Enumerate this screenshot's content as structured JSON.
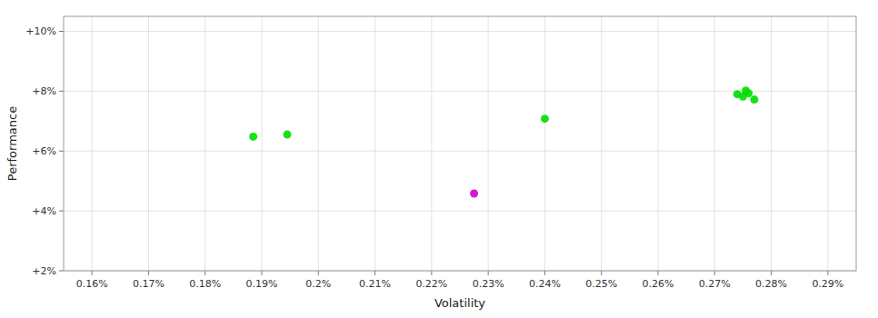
{
  "chart_data": {
    "type": "scatter",
    "xlabel": "Volatility",
    "ylabel": "Performance",
    "xlim": [
      0.00155,
      0.00295
    ],
    "ylim": [
      0.02,
      0.105
    ],
    "xticks": [
      {
        "value": 0.0016,
        "label": "0.16%"
      },
      {
        "value": 0.0017,
        "label": "0.17%"
      },
      {
        "value": 0.0018,
        "label": "0.18%"
      },
      {
        "value": 0.0019,
        "label": "0.19%"
      },
      {
        "value": 0.002,
        "label": "0.2%"
      },
      {
        "value": 0.0021,
        "label": "0.21%"
      },
      {
        "value": 0.0022,
        "label": "0.22%"
      },
      {
        "value": 0.0023,
        "label": "0.23%"
      },
      {
        "value": 0.0024,
        "label": "0.24%"
      },
      {
        "value": 0.0025,
        "label": "0.25%"
      },
      {
        "value": 0.0026,
        "label": "0.26%"
      },
      {
        "value": 0.0027,
        "label": "0.27%"
      },
      {
        "value": 0.0028,
        "label": "0.28%"
      },
      {
        "value": 0.0029,
        "label": "0.29%"
      }
    ],
    "yticks": [
      {
        "value": 0.02,
        "label": "+2%"
      },
      {
        "value": 0.04,
        "label": "+4%"
      },
      {
        "value": 0.06,
        "label": "+6%"
      },
      {
        "value": 0.08,
        "label": "+8%"
      },
      {
        "value": 0.1,
        "label": "+10%"
      }
    ],
    "grid": true,
    "series": [
      {
        "color": "#00dd00",
        "x": [
          0.001885,
          0.001945,
          0.0024,
          0.00274,
          0.002755,
          0.00276,
          0.00275,
          0.00277
        ],
        "values": [
          0.0648,
          0.0655,
          0.0708,
          0.079,
          0.0802,
          0.0793,
          0.0782,
          0.0772
        ]
      },
      {
        "color": "#cc00cc",
        "x": [
          0.002275
        ],
        "values": [
          0.0458
        ]
      }
    ]
  }
}
